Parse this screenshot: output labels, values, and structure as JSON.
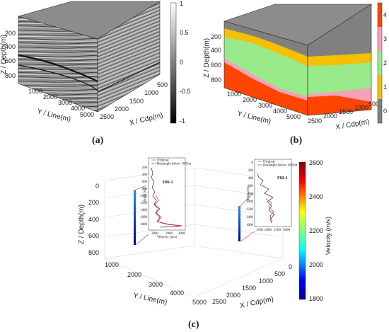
{
  "panel_a": {
    "caption": "(a)",
    "z_label": "Z / Depth(m)",
    "y_label": "Y / Line(m)",
    "x_label": "X / Cdp(m)",
    "z_ticks": [
      "200",
      "400",
      "600",
      "800"
    ],
    "y_ticks": [
      "1000",
      "2000",
      "3000",
      "4000",
      "5000"
    ],
    "x_ticks": [
      "2500",
      "2000",
      "1500",
      "1000",
      "500"
    ],
    "colorbar_ticks": [
      "1",
      "0.5",
      "0",
      "-0.5",
      "-1"
    ]
  },
  "panel_b": {
    "caption": "(b)",
    "z_label": "Z / Depth(m)",
    "y_label": "Y / Line(m)",
    "x_label": "X / Cdp(m)",
    "z_ticks": [
      "200",
      "400",
      "600",
      "800"
    ],
    "y_ticks": [
      "1000",
      "2000",
      "3000",
      "4000",
      "5000"
    ],
    "x_ticks": [
      "2500",
      "2000",
      "1500",
      "1000",
      "500"
    ],
    "colorbar_ticks": [
      "4",
      "3",
      "2",
      "1",
      "0"
    ],
    "layer_colors": [
      "#808080",
      "#f5c000",
      "#98ea8a",
      "#f7a0b8",
      "#ff4500"
    ]
  },
  "panel_c": {
    "caption": "(c)",
    "z_label": "Z / Depth(m)",
    "y_label": "Y / Line(m)",
    "x_label": "X / Cdp(m)",
    "z_ticks": [
      "0",
      "200",
      "400",
      "600",
      "800"
    ],
    "y_ticks": [
      "1000",
      "2000",
      "3000",
      "4000",
      "5000"
    ],
    "x_ticks": [
      "2500",
      "2000",
      "1500",
      "1000",
      "500",
      "0"
    ],
    "colorbar_label": "Velocity (m/s)",
    "colorbar_ticks": [
      "2600",
      "2400",
      "2200",
      "2000",
      "1800"
    ],
    "well1": {
      "name": "F06-1",
      "legend_original": "Original",
      "legend_resample": "Resample below 1005m",
      "depth_label": "depth (m)",
      "velocity_label": "Velocity (m/s)",
      "depth_ticks": [
        "200",
        "400",
        "600",
        "800",
        "1000",
        "1200",
        "1400",
        "1600",
        "1800"
      ],
      "velocity_ticks": [
        "2000",
        "3000",
        "4000"
      ]
    },
    "well2": {
      "name": "F02-1",
      "legend_original": "Original",
      "legend_resample": "Resample below 1005m",
      "depth_label": "depth (m)",
      "velocity_label": "Velocity (m/s)",
      "depth_ticks": [
        "0",
        "200",
        "400",
        "600",
        "800",
        "1000",
        "1200",
        "1400",
        "1600"
      ],
      "velocity_ticks": [
        "1500",
        "2000",
        "2500",
        "3000"
      ]
    }
  }
}
